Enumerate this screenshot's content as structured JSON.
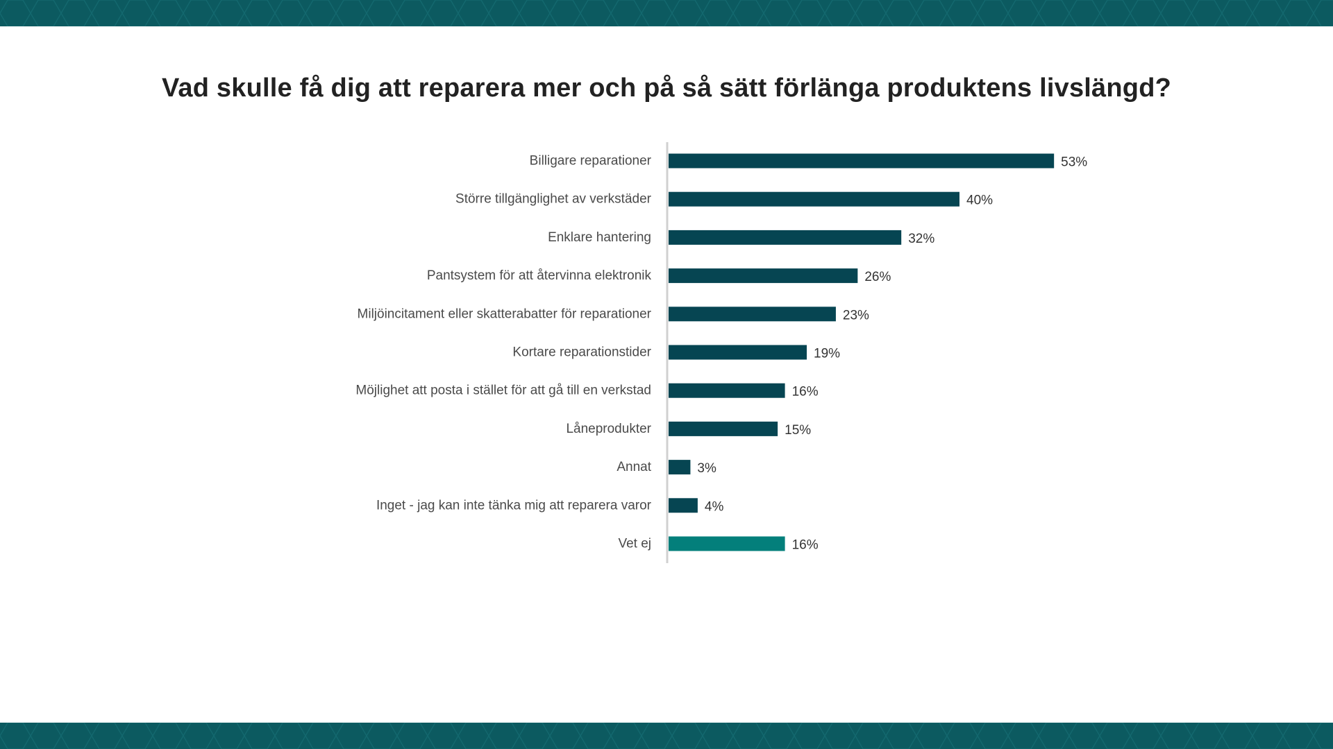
{
  "theme": {
    "band_color": "#0c5a60",
    "bar_color": "#064552",
    "highlight_bar_color": "#037f7b",
    "axis_color": "#d0d0d0",
    "label_color": "#4a4a4a",
    "value_color": "#333333"
  },
  "chart_data": {
    "type": "bar",
    "orientation": "horizontal",
    "title": "Vad skulle få dig att reparera mer och på så sätt förlänga produktens livslängd?",
    "categories": [
      "Billigare reparationer",
      "Större tillgänglighet av verkstäder",
      "Enklare hantering",
      "Pantsystem för att återvinna elektronik",
      "Miljöincitament eller skatterabatter för reparationer",
      "Kortare reparationstider",
      "Möjlighet att posta i stället för att gå till en verkstad",
      "Låneprodukter",
      "Annat",
      "Inget - jag kan inte tänka mig att reparera varor",
      "Vet ej"
    ],
    "values": [
      53,
      40,
      32,
      26,
      23,
      19,
      16,
      15,
      3,
      4,
      16
    ],
    "value_labels": [
      "53%",
      "40%",
      "32%",
      "26%",
      "23%",
      "19%",
      "16%",
      "15%",
      "3%",
      "4%",
      "16%"
    ],
    "highlighted_categories": [
      "Vet ej"
    ],
    "unit": "%",
    "grid": false,
    "legend": "none"
  }
}
